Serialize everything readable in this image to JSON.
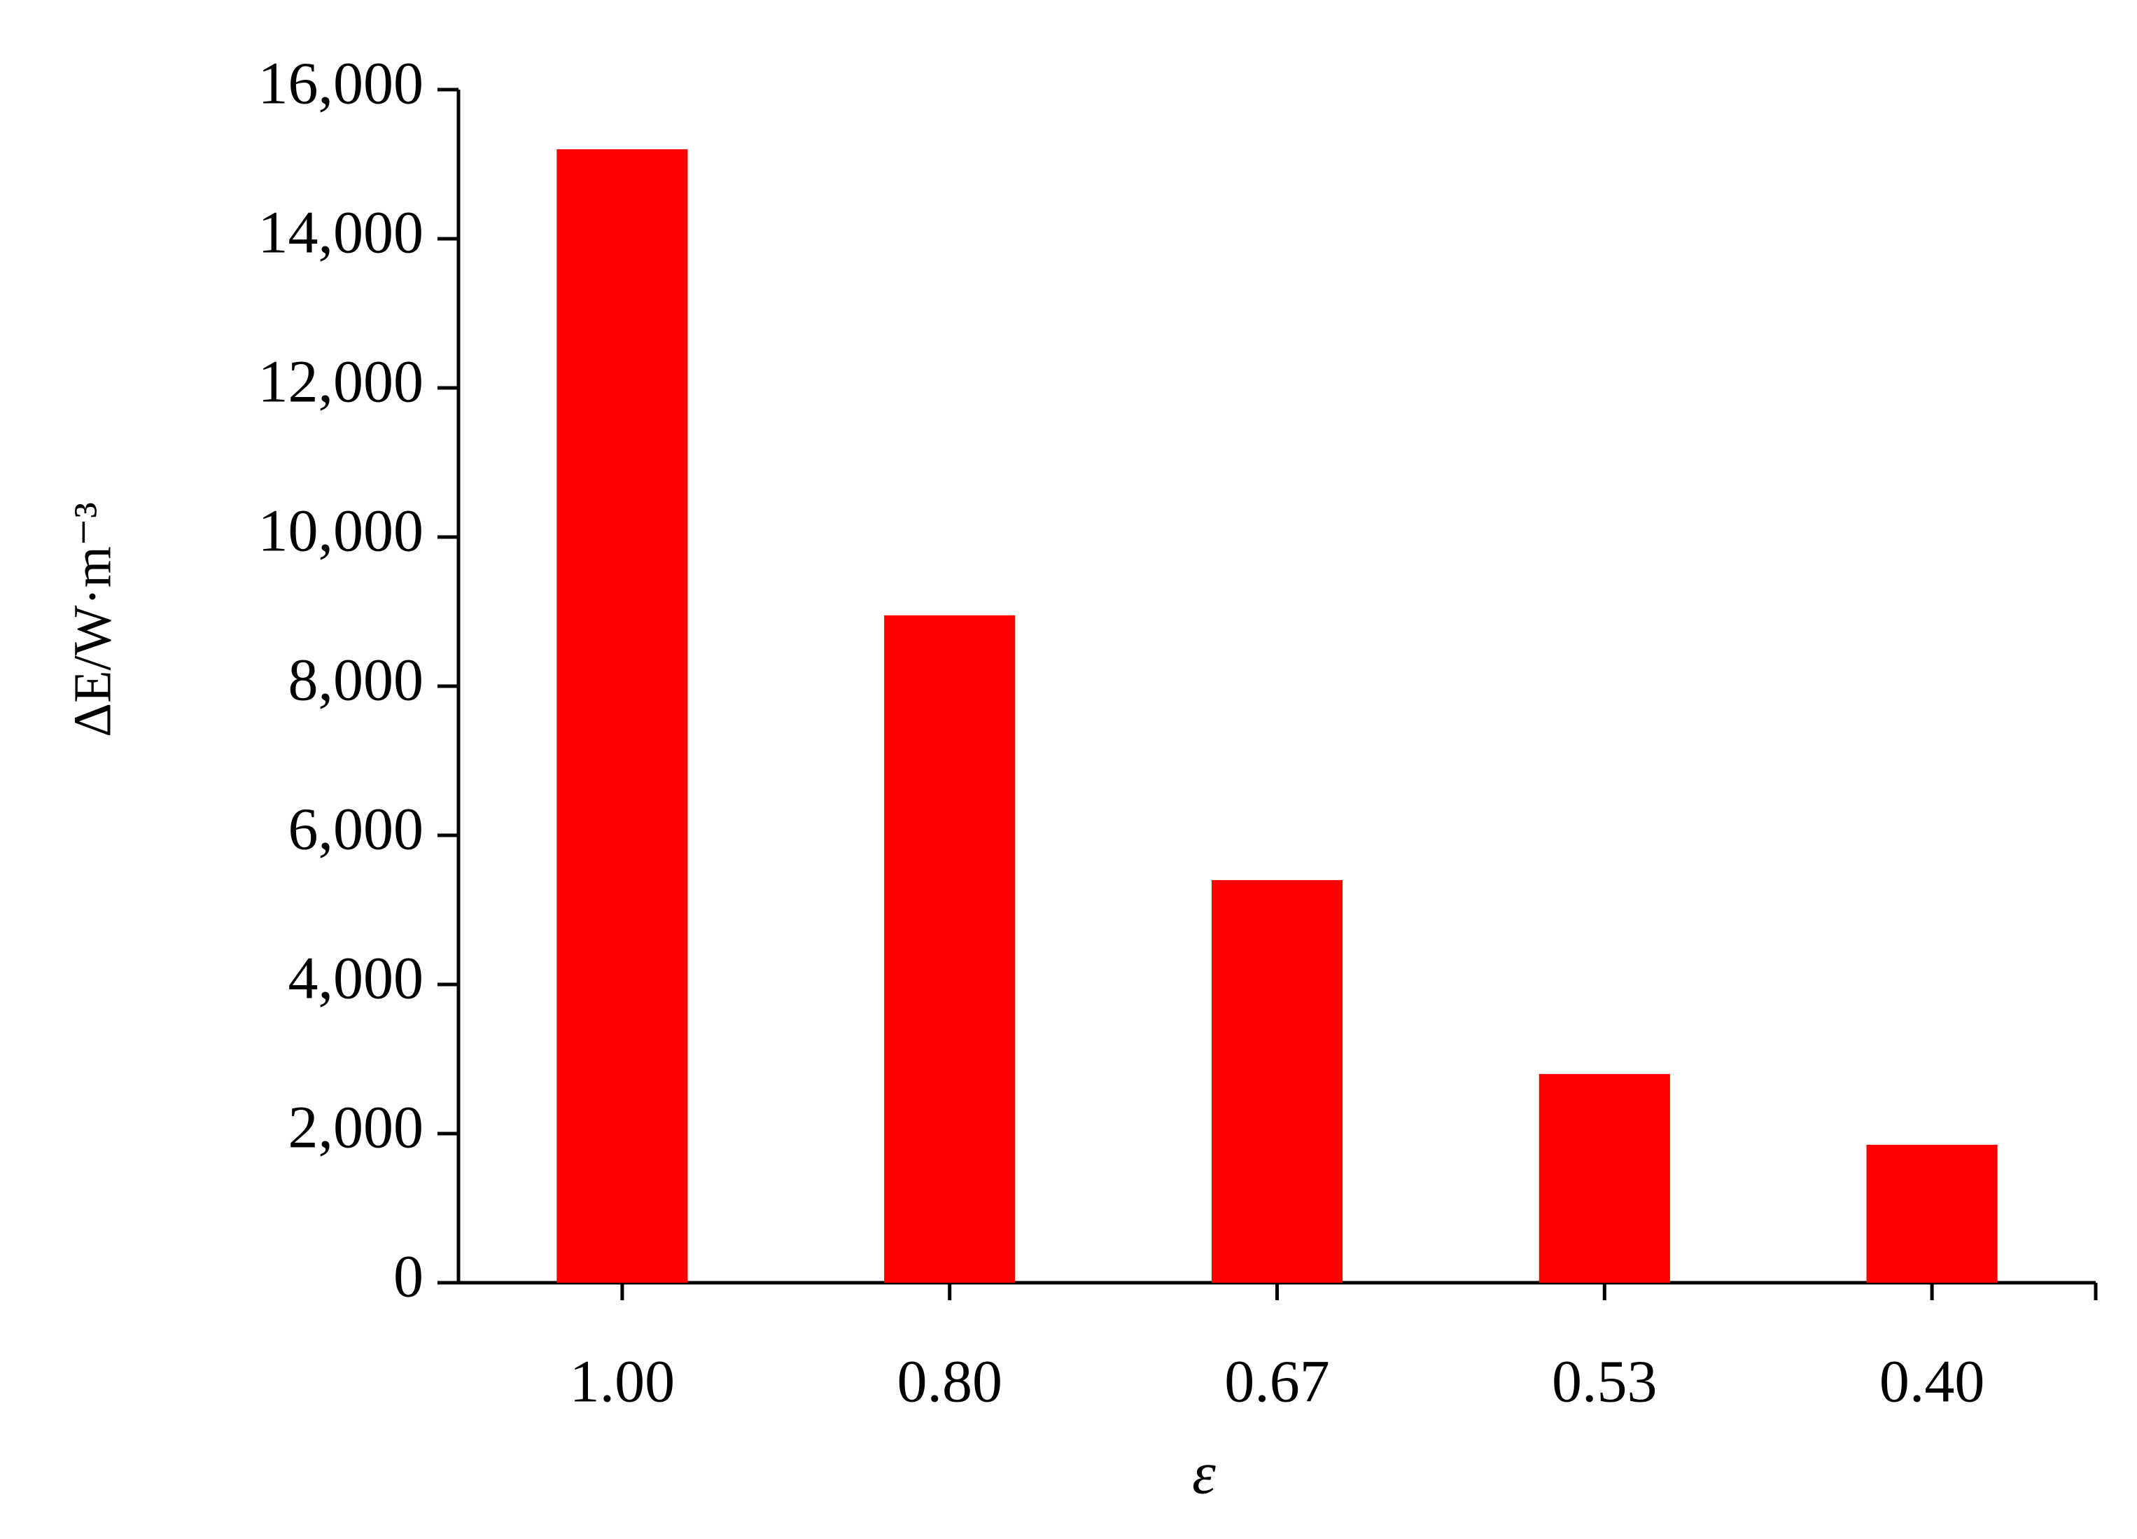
{
  "chart_data": {
    "type": "bar",
    "x_label": "ε",
    "y_label": "ΔE/W·m⁻³",
    "categories": [
      "1.00",
      "0.80",
      "0.67",
      "0.53",
      "0.40"
    ],
    "values": [
      15200,
      8950,
      5400,
      2800,
      1850
    ],
    "color": "#ff0000",
    "ylim": [
      0,
      16000
    ],
    "yticks": [
      0,
      {
        "value": 2000,
        "label": "2,000"
      },
      {
        "value": 4000,
        "label": "4,000"
      },
      {
        "value": 6000,
        "label": "6,000"
      },
      {
        "value": 8000,
        "label": "8,000"
      },
      {
        "value": 10000,
        "label": "10,000"
      },
      {
        "value": 12000,
        "label": "12,000"
      },
      {
        "value": 14000,
        "label": "14,000"
      },
      {
        "value": 16000,
        "label": "16,000"
      }
    ],
    "grid": false
  }
}
